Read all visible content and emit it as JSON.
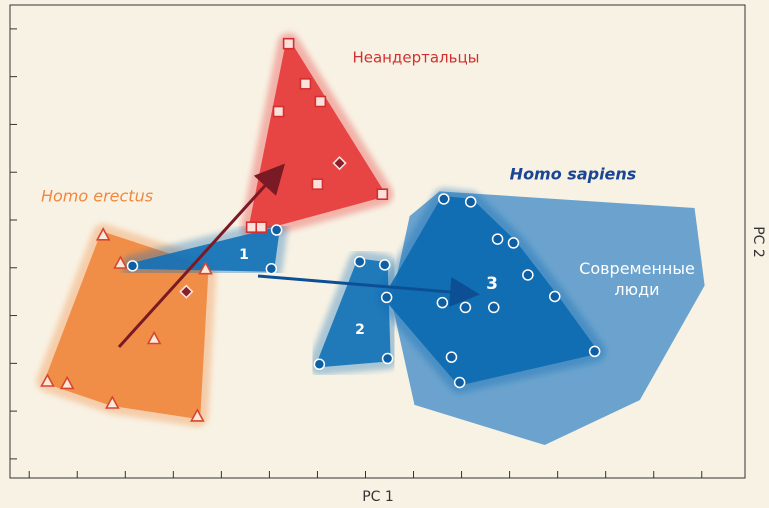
{
  "chart_data": {
    "type": "scatter",
    "xlabel": "PC 1",
    "ylabel": "PC 2",
    "xlim": [
      -0.4,
      14.9
    ],
    "ylim": [
      -0.4,
      9.5
    ],
    "xticks": [
      0,
      1,
      2,
      3,
      4,
      5,
      6,
      7,
      8,
      9,
      10,
      11,
      12,
      13,
      14
    ],
    "yticks": [
      0,
      1,
      2,
      3,
      4,
      5,
      6,
      7,
      8,
      9
    ],
    "series": [
      {
        "name": "Современные люди",
        "marker": "area",
        "color": "#5b9acb",
        "x": [
          8.54,
          13.85,
          14.06,
          12.71,
          10.73,
          8.02,
          7.54,
          7.92
        ],
        "values": [
          5.6,
          5.25,
          3.63,
          1.23,
          0.29,
          1.13,
          3.31,
          5.08
        ]
      },
      {
        "name": "Homo erectus",
        "marker": "triangle",
        "color": "#f0883e",
        "marker_color": "#d9452e",
        "x": [
          1.54,
          1.9,
          3.67,
          2.6,
          0.38,
          0.79,
          1.73,
          3.5
        ],
        "values": [
          4.69,
          4.1,
          3.98,
          2.52,
          1.63,
          1.58,
          1.17,
          0.9
        ]
      },
      {
        "name": "Неандертальцы",
        "marker": "square",
        "color": "#e63a3a",
        "marker_color": "#d2302e",
        "x": [
          5.4,
          5.75,
          6.06,
          5.19,
          6.0,
          7.35,
          4.63,
          4.83
        ],
        "values": [
          8.69,
          7.85,
          7.48,
          7.27,
          5.75,
          5.54,
          4.85,
          4.85
        ]
      },
      {
        "name": "1",
        "marker": "circle",
        "color": "#1272b8",
        "marker_color": "#0d5ea3",
        "x": [
          2.15,
          5.15,
          5.04
        ],
        "values": [
          4.04,
          4.79,
          3.98
        ]
      },
      {
        "name": "2",
        "marker": "circle",
        "color": "#1272b8",
        "marker_color": "#0d5ea3",
        "x": [
          6.88,
          6.04,
          7.46,
          7.4
        ],
        "values": [
          4.13,
          1.98,
          2.1,
          4.06
        ]
      },
      {
        "name": "3",
        "marker": "circle",
        "color": "#0d6bb2",
        "marker_color": "#0d5ea3",
        "x": [
          8.63,
          9.19,
          9.75,
          10.08,
          10.38,
          10.94,
          11.77,
          8.96,
          8.79,
          7.44,
          8.6,
          9.08,
          9.67
        ],
        "values": [
          5.44,
          5.38,
          4.6,
          4.52,
          3.85,
          3.4,
          2.25,
          1.6,
          2.13,
          3.38,
          3.27,
          3.17,
          3.17
        ]
      },
      {
        "marker": "diamond",
        "color": "#8b1e2a",
        "x": [
          6.46,
          3.27
        ],
        "values": [
          6.19,
          3.5
        ]
      }
    ],
    "annotations": [
      "Homo sapiens"
    ]
  }
}
